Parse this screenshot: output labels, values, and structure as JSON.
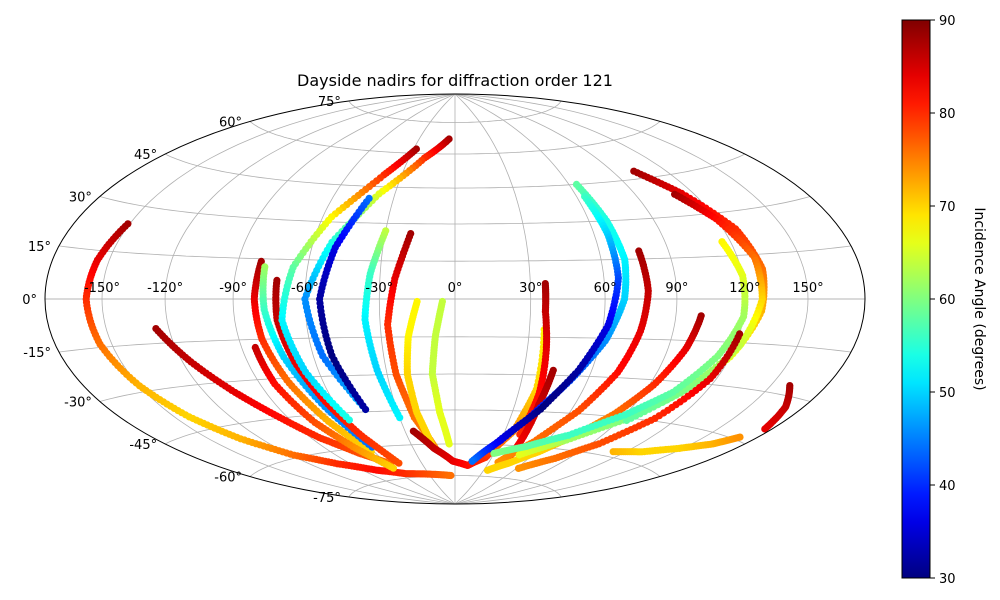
{
  "chart_data": {
    "type": "scatter",
    "projection": "aitoff-hammer-like",
    "title": "Dayside nadirs for diffraction order 121",
    "lon_ticks": [
      "-150°",
      "-120°",
      "-90°",
      "-60°",
      "-30°",
      "0°",
      "30°",
      "60°",
      "90°",
      "120°",
      "150°"
    ],
    "lon_values": [
      -150,
      -120,
      -90,
      -60,
      -30,
      0,
      30,
      60,
      90,
      120,
      150
    ],
    "lat_ticks": [
      "75°",
      "60°",
      "45°",
      "30°",
      "15°",
      "0°",
      "-15°",
      "-30°",
      "-45°",
      "-60°",
      "-75°"
    ],
    "lat_values": [
      75,
      60,
      45,
      30,
      15,
      0,
      -15,
      -30,
      -45,
      -60,
      -75
    ],
    "colorbar": {
      "label": "Incidence Angle (degrees)",
      "min": 30,
      "max": 90,
      "ticks": [
        "30",
        "40",
        "50",
        "60",
        "70",
        "80",
        "90"
      ],
      "tick_values": [
        30,
        40,
        50,
        60,
        70,
        80,
        90
      ],
      "colormap": "jet"
    },
    "grid": true,
    "tracks": [
      {
        "lon": [
          -151,
          -156,
          -158,
          -156,
          -150,
          -142,
          -132,
          -118,
          -100,
          -78,
          -55,
          -30,
          -5
        ],
        "lat": [
          24,
          12,
          0,
          -14,
          -28,
          -40,
          -50,
          -59,
          -65,
          -70,
          -73,
          -74,
          -75
        ],
        "inc": [
          88,
          84,
          80,
          76,
          72,
          70,
          72,
          76,
          80,
          82,
          80,
          78,
          76
        ]
      },
      {
        "lon": [
          -126,
          -116,
          -105,
          -95,
          -85,
          -72,
          -58
        ],
        "lat": [
          -10,
          -22,
          -34,
          -44,
          -54,
          -62,
          -68
        ],
        "inc": [
          88,
          86,
          84,
          82,
          80,
          78,
          76
        ]
      },
      {
        "lon": [
          -80,
          -81,
          -80,
          -76,
          -70,
          -62
        ],
        "lat": [
          14,
          0,
          -15,
          -32,
          -48,
          -62
        ],
        "inc": [
          88,
          84,
          80,
          76,
          72,
          70
        ]
      },
      {
        "lon": [
          -78,
          -77,
          -73,
          -66,
          -58
        ],
        "lat": [
          12,
          -4,
          -22,
          -42,
          -60
        ],
        "inc": [
          62,
          56,
          50,
          46,
          44
        ]
      },
      {
        "lon": [
          -72,
          -72,
          -69,
          -64,
          -58,
          -50
        ],
        "lat": [
          7,
          -8,
          -24,
          -40,
          -55,
          -68
        ],
        "inc": [
          88,
          86,
          84,
          82,
          80,
          78
        ]
      },
      {
        "lon": [
          -84,
          -83,
          -78,
          -70,
          -60
        ],
        "lat": [
          -18,
          -32,
          -48,
          -60,
          -70
        ],
        "inc": [
          86,
          82,
          78,
          74,
          70
        ]
      },
      {
        "lon": [
          -28,
          -40,
          -56,
          -66,
          -70,
          -66,
          -58
        ],
        "lat": [
          62,
          50,
          32,
          12,
          -8,
          -28,
          -48
        ],
        "inc": [
          88,
          80,
          68,
          58,
          52,
          50,
          54
        ]
      },
      {
        "lon": [
          -5,
          -20,
          -38,
          -52,
          -60,
          -56,
          -46
        ],
        "lat": [
          67,
          58,
          42,
          22,
          0,
          -22,
          -44
        ],
        "inc": [
          88,
          80,
          66,
          54,
          46,
          44,
          48
        ]
      },
      {
        "lon": [
          -42,
          -50,
          -54,
          -52,
          -46
        ],
        "lat": [
          40,
          20,
          0,
          -22,
          -44
        ],
        "inc": [
          44,
          36,
          32,
          30,
          32
        ]
      },
      {
        "lon": [
          -30,
          -34,
          -36,
          -34,
          -30
        ],
        "lat": [
          27,
          10,
          -8,
          -28,
          -48
        ],
        "inc": [
          64,
          56,
          52,
          50,
          52
        ]
      },
      {
        "lon": [
          -19,
          -24,
          -27,
          -26,
          -22,
          -14
        ],
        "lat": [
          26,
          8,
          -10,
          -30,
          -48,
          -62
        ],
        "inc": [
          88,
          84,
          80,
          78,
          76,
          74
        ]
      },
      {
        "lon": [
          -15,
          -19,
          -21,
          -20,
          -16
        ],
        "lat": [
          -1,
          -15,
          -30,
          -46,
          -60
        ],
        "inc": [
          68,
          68,
          70,
          70,
          70
        ]
      },
      {
        "lon": [
          -5,
          -8,
          -10,
          -8,
          -4
        ],
        "lat": [
          -1,
          -15,
          -30,
          -46,
          -60
        ],
        "inc": [
          64,
          64,
          64,
          66,
          66
        ]
      },
      {
        "lon": [
          -25,
          -15,
          -2,
          12,
          25,
          35,
          38,
          36
        ],
        "lat": [
          -54,
          -62,
          -68,
          -70,
          -66,
          -54,
          -36,
          -12
        ],
        "inc": [
          88,
          86,
          84,
          82,
          80,
          74,
          70,
          68
        ]
      },
      {
        "lon": [
          36,
          36,
          38,
          40,
          40
        ],
        "lat": [
          6,
          -5,
          -20,
          -38,
          -55
        ],
        "inc": [
          88,
          86,
          84,
          82,
          80
        ]
      },
      {
        "lon": [
          43,
          42,
          43,
          44
        ],
        "lat": [
          -28,
          -42,
          -55,
          -66
        ],
        "inc": [
          88,
          86,
          84,
          82
        ]
      },
      {
        "lon": [
          64,
          68,
          70,
          68,
          62,
          52,
          40,
          25
        ],
        "lat": [
          45,
          30,
          15,
          0,
          -16,
          -32,
          -48,
          -62
        ],
        "inc": [
          58,
          54,
          52,
          50,
          46,
          42,
          38,
          34
        ]
      },
      {
        "lon": [
          64,
          66,
          66,
          62,
          54,
          44,
          30,
          15
        ],
        "lat": [
          40,
          25,
          8,
          -10,
          -28,
          -44,
          -58,
          -68
        ],
        "inc": [
          56,
          50,
          42,
          36,
          32,
          30,
          36,
          44
        ]
      },
      {
        "lon": [
          77,
          78,
          76,
          72,
          64,
          52,
          38
        ],
        "lat": [
          18,
          3,
          -12,
          -28,
          -44,
          -58,
          -68
        ],
        "inc": [
          88,
          86,
          84,
          82,
          78,
          76,
          74
        ]
      },
      {
        "lon": [
          101,
          98,
          92,
          84,
          74,
          62,
          48,
          34
        ],
        "lat": [
          -6,
          -18,
          -32,
          -44,
          -54,
          -62,
          -68,
          -72
        ],
        "inc": [
          88,
          84,
          80,
          76,
          72,
          70,
          70,
          70
        ]
      },
      {
        "lon": [
          102,
          114,
          126,
          130,
          128,
          120,
          108,
          92,
          72,
          50
        ],
        "lat": [
          48,
          38,
          24,
          10,
          -4,
          -20,
          -34,
          -46,
          -56,
          -64
        ],
        "inc": [
          88,
          84,
          80,
          76,
          72,
          66,
          62,
          60,
          62,
          66
        ]
      },
      {
        "lon": [
          110,
          120,
          128,
          128,
          122,
          110,
          94
        ],
        "lat": [
          38,
          28,
          14,
          0,
          -16,
          -32,
          -46
        ],
        "inc": [
          88,
          82,
          76,
          70,
          64,
          60,
          58
        ]
      },
      {
        "lon": [
          116,
          120,
          120,
          114,
          104,
          90,
          70,
          50,
          30
        ],
        "lat": [
          20,
          8,
          -6,
          -20,
          -34,
          -44,
          -54,
          -60,
          -64
        ],
        "inc": [
          68,
          66,
          62,
          60,
          58,
          56,
          56,
          58,
          60
        ]
      },
      {
        "lon": [
          120,
          117,
          108,
          95,
          80,
          62
        ],
        "lat": [
          -12,
          -28,
          -44,
          -56,
          -64,
          -70
        ],
        "inc": [
          88,
          84,
          80,
          78,
          76,
          74
        ]
      },
      {
        "lon": [
          112,
          130,
          148,
          162,
          170
        ],
        "lat": [
          -58,
          -56,
          -52,
          -48,
          -44
        ],
        "inc": [
          72,
          70,
          70,
          72,
          74
        ]
      },
      {
        "lon": [
          160,
          170,
          176
        ],
        "lat": [
          -27,
          -33,
          -40
        ],
        "inc": [
          88,
          86,
          84
        ]
      }
    ]
  }
}
